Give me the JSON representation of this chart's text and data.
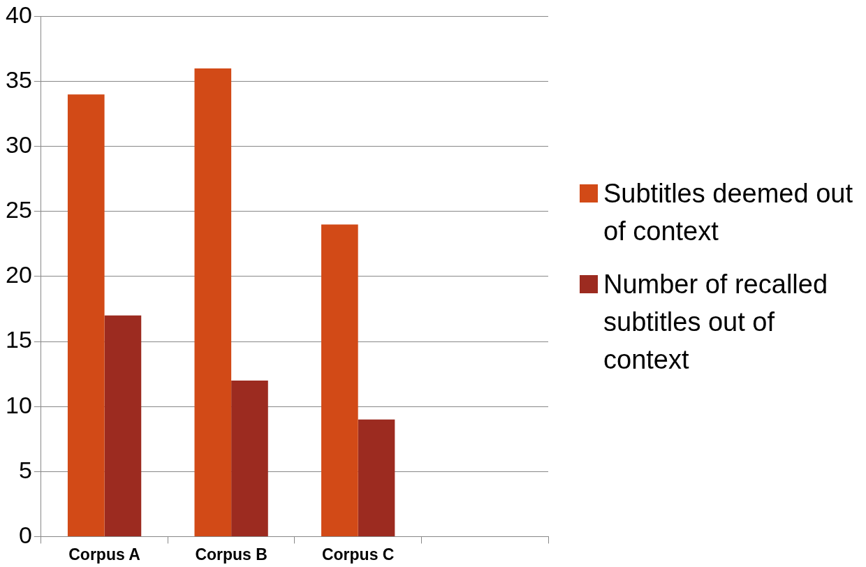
{
  "chart_data": {
    "type": "bar",
    "categories": [
      "Corpus A",
      "Corpus B",
      "Corpus C",
      null
    ],
    "series": [
      {
        "name": "Subtitles deemed out of context",
        "color": "#d24a17",
        "values": [
          34,
          36,
          24,
          null
        ]
      },
      {
        "name": "Number of recalled subtitles out of context",
        "color": "#9c2b20",
        "values": [
          17,
          12,
          9,
          null
        ]
      }
    ],
    "ylim": [
      0,
      40
    ],
    "yticks": [
      0,
      5,
      10,
      15,
      20,
      25,
      30,
      35,
      40
    ],
    "grid": "y",
    "legend": "right"
  }
}
